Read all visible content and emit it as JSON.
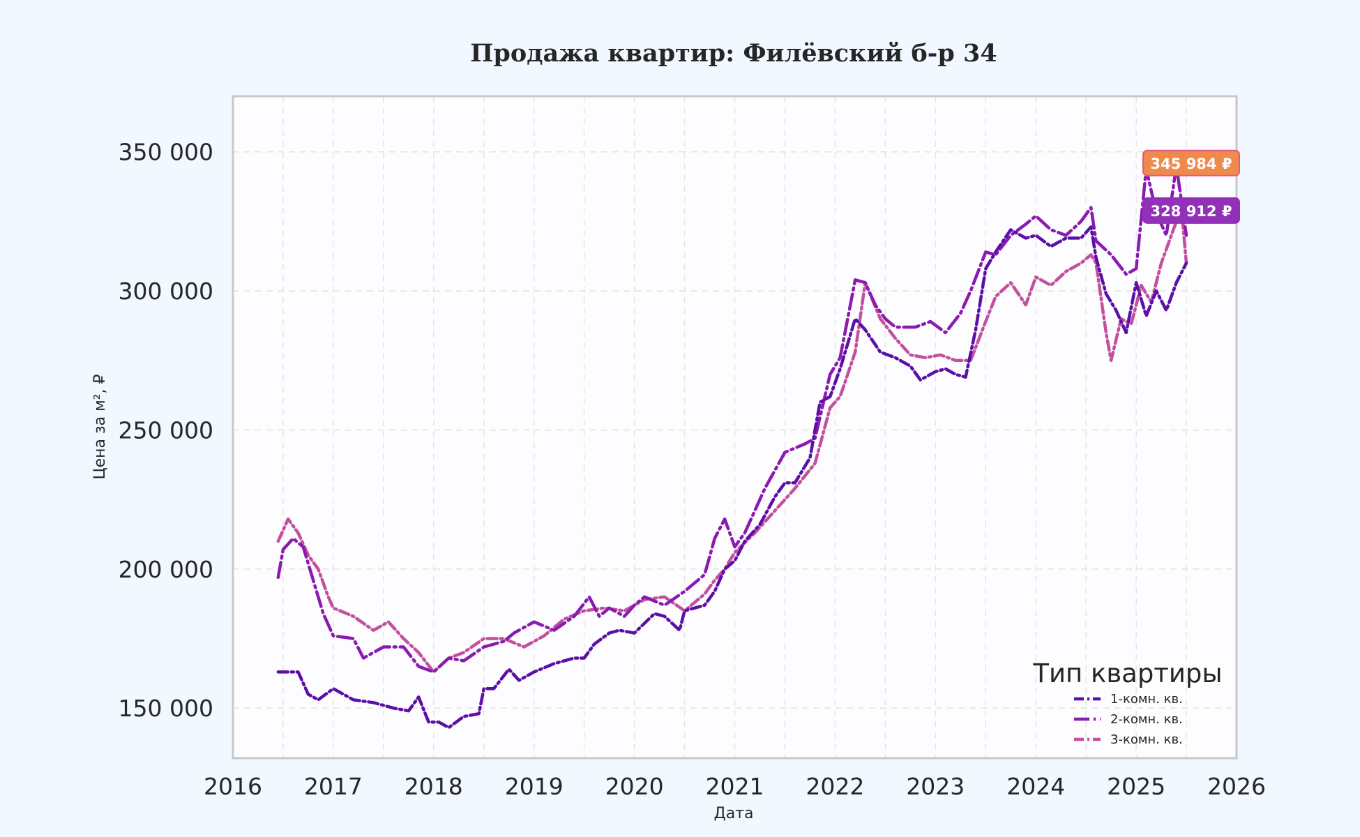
{
  "chart_data": {
    "type": "line",
    "title": "Продажа квартир: Филёвский б-р 34",
    "xlabel": "Дата",
    "ylabel": "Цена за м², ₽",
    "xlim": [
      2016,
      2026
    ],
    "ylim": [
      132000,
      370000
    ],
    "x_ticks": [
      2016,
      2017,
      2018,
      2019,
      2020,
      2021,
      2022,
      2023,
      2024,
      2025,
      2026
    ],
    "x_tick_labels": [
      "2016",
      "2017",
      "2018",
      "2019",
      "2020",
      "2021",
      "2022",
      "2023",
      "2024",
      "2025",
      "2026"
    ],
    "y_ticks": [
      150000,
      200000,
      250000,
      300000,
      350000
    ],
    "y_tick_labels": [
      "150 000",
      "200 000",
      "250 000",
      "300 000",
      "350 000"
    ],
    "grid": true,
    "legend": {
      "title": "Тип квартиры",
      "placement": "lower-right"
    },
    "series": [
      {
        "name": "1-комн. кв.",
        "color": "#5c0fa6",
        "dash": "dash-dot",
        "x": [
          2016.45,
          2016.55,
          2016.65,
          2016.75,
          2016.85,
          2017.0,
          2017.2,
          2017.4,
          2017.6,
          2017.75,
          2017.85,
          2017.95,
          2018.05,
          2018.15,
          2018.3,
          2018.45,
          2018.5,
          2018.6,
          2018.75,
          2018.85,
          2019.0,
          2019.2,
          2019.4,
          2019.5,
          2019.6,
          2019.75,
          2019.85,
          2020.0,
          2020.2,
          2020.3,
          2020.45,
          2020.5,
          2020.7,
          2020.8,
          2020.9,
          2021.0,
          2021.1,
          2021.25,
          2021.4,
          2021.5,
          2021.6,
          2021.75,
          2021.85,
          2021.95,
          2022.05,
          2022.2,
          2022.3,
          2022.45,
          2022.6,
          2022.75,
          2022.85,
          2023.0,
          2023.1,
          2023.2,
          2023.3,
          2023.4,
          2023.5,
          2023.6,
          2023.75,
          2023.9,
          2024.0,
          2024.15,
          2024.3,
          2024.45,
          2024.55,
          2024.6,
          2024.7,
          2024.8,
          2024.9,
          2025.0,
          2025.1,
          2025.2,
          2025.3,
          2025.4,
          2025.5
        ],
        "y": [
          163000,
          163000,
          163000,
          155000,
          153000,
          157000,
          153000,
          152000,
          150000,
          149000,
          154000,
          145000,
          145000,
          143000,
          147000,
          148000,
          157000,
          157000,
          164000,
          160000,
          163000,
          166000,
          168000,
          168000,
          173000,
          177000,
          178000,
          177000,
          184000,
          183000,
          178000,
          185000,
          187000,
          192000,
          200000,
          203000,
          210000,
          216000,
          226000,
          231000,
          231000,
          240000,
          260000,
          262000,
          272000,
          290000,
          286000,
          278000,
          276000,
          273000,
          268000,
          271000,
          272000,
          270000,
          269000,
          286000,
          308000,
          314000,
          322000,
          319000,
          320000,
          316000,
          319000,
          319000,
          323000,
          312000,
          299000,
          293000,
          285000,
          303000,
          291000,
          300000,
          293000,
          303000,
          310000
        ]
      },
      {
        "name": "2-комн. кв.",
        "color": "#8a1bb0",
        "dash": "long-dash-dot",
        "x": [
          2016.45,
          2016.5,
          2016.6,
          2016.7,
          2016.8,
          2016.9,
          2017.0,
          2017.2,
          2017.3,
          2017.5,
          2017.7,
          2017.85,
          2018.0,
          2018.15,
          2018.3,
          2018.5,
          2018.7,
          2018.8,
          2019.0,
          2019.2,
          2019.4,
          2019.55,
          2019.65,
          2019.75,
          2019.9,
          2020.0,
          2020.1,
          2020.3,
          2020.5,
          2020.7,
          2020.8,
          2020.9,
          2021.0,
          2021.1,
          2021.3,
          2021.5,
          2021.7,
          2021.8,
          2021.95,
          2022.05,
          2022.2,
          2022.3,
          2022.4,
          2022.5,
          2022.6,
          2022.8,
          2022.95,
          2023.1,
          2023.25,
          2023.35,
          2023.5,
          2023.6,
          2023.75,
          2023.9,
          2024.0,
          2024.15,
          2024.3,
          2024.45,
          2024.55,
          2024.6,
          2024.75,
          2024.9,
          2025.0,
          2025.1,
          2025.2,
          2025.3,
          2025.4,
          2025.5
        ],
        "y": [
          197000,
          207000,
          211000,
          208000,
          196000,
          184000,
          176000,
          175000,
          168000,
          172000,
          172000,
          165000,
          163000,
          168000,
          167000,
          172000,
          174000,
          177000,
          181000,
          178000,
          183000,
          190000,
          183000,
          186000,
          183000,
          187000,
          190000,
          187000,
          192000,
          198000,
          211000,
          218000,
          208000,
          213000,
          229000,
          242000,
          245000,
          247000,
          270000,
          276000,
          304000,
          303000,
          295000,
          290000,
          287000,
          287000,
          289000,
          285000,
          292000,
          300000,
          314000,
          313000,
          320000,
          324000,
          327000,
          322000,
          320000,
          325000,
          330000,
          318000,
          313000,
          306000,
          308000,
          344000,
          328000,
          320000,
          345000,
          320000
        ]
      },
      {
        "name": "3-комн. кв.",
        "color": "#c2509e",
        "dash": "dash-dot",
        "x": [
          2016.45,
          2016.55,
          2016.65,
          2016.75,
          2016.85,
          2016.95,
          2017.0,
          2017.2,
          2017.4,
          2017.55,
          2017.7,
          2017.85,
          2018.0,
          2018.15,
          2018.3,
          2018.5,
          2018.7,
          2018.9,
          2019.1,
          2019.3,
          2019.5,
          2019.7,
          2019.9,
          2020.1,
          2020.3,
          2020.5,
          2020.7,
          2020.8,
          2020.9,
          2021.0,
          2021.2,
          2021.4,
          2021.6,
          2021.8,
          2021.95,
          2022.05,
          2022.2,
          2022.3,
          2022.45,
          2022.6,
          2022.75,
          2022.9,
          2023.05,
          2023.2,
          2023.35,
          2023.5,
          2023.6,
          2023.75,
          2023.9,
          2024.0,
          2024.15,
          2024.3,
          2024.45,
          2024.55,
          2024.6,
          2024.7,
          2024.75,
          2024.85,
          2024.95,
          2025.05,
          2025.15,
          2025.25,
          2025.35,
          2025.45,
          2025.5
        ],
        "y": [
          210000,
          218000,
          213000,
          205000,
          200000,
          190000,
          186000,
          183000,
          178000,
          181000,
          175000,
          170000,
          163000,
          168000,
          170000,
          175000,
          175000,
          172000,
          176000,
          182000,
          185000,
          186000,
          185000,
          189000,
          190000,
          185000,
          191000,
          196000,
          200000,
          206000,
          213000,
          221000,
          229000,
          238000,
          258000,
          262000,
          278000,
          303000,
          290000,
          283000,
          277000,
          276000,
          277000,
          275000,
          275000,
          289000,
          298000,
          303000,
          295000,
          305000,
          302000,
          307000,
          310000,
          313000,
          310000,
          285000,
          275000,
          290000,
          288000,
          302000,
          296000,
          310000,
          320000,
          330000,
          310000
        ]
      }
    ],
    "badges": [
      {
        "label": "345 984 ₽",
        "value": 345984,
        "color": "#f08a4b",
        "border": "#e0568a"
      },
      {
        "label": "328 912 ₽",
        "value": 328912,
        "color": "#9230b8",
        "border": "#9230b8"
      }
    ]
  }
}
